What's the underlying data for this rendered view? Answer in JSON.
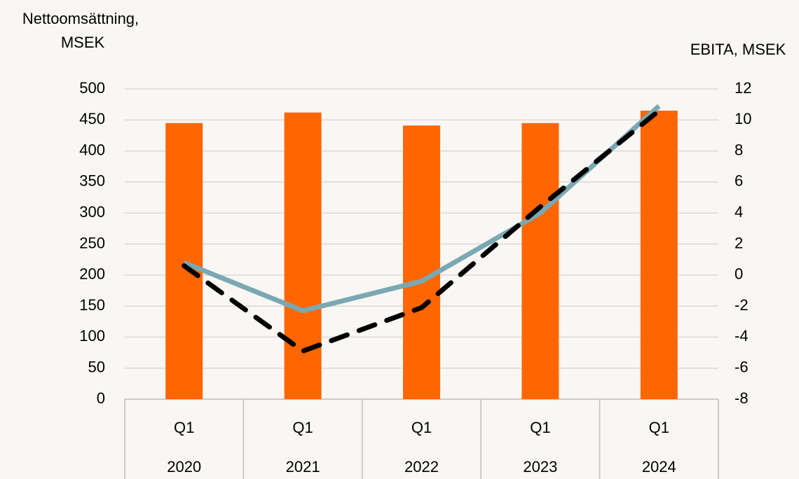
{
  "chart_data": {
    "type": "combo",
    "y_label": [
      "Nettoomsättning,",
      "MSEK"
    ],
    "y2_label": "EBITA, MSEK",
    "categories": [
      "Q1",
      "Q1",
      "Q1",
      "Q1",
      "Q1"
    ],
    "years": [
      "2020",
      "2021",
      "2022",
      "2023",
      "2024"
    ],
    "ylim": [
      0,
      500
    ],
    "yticks": [
      0,
      50,
      100,
      150,
      200,
      250,
      300,
      350,
      400,
      450,
      500
    ],
    "y2lim": [
      -8,
      12
    ],
    "y2ticks": [
      -8,
      -6,
      -4,
      -2,
      0,
      2,
      4,
      6,
      8,
      10,
      12
    ],
    "grid": true,
    "series": [
      {
        "type": "bar",
        "color": "#ff6600",
        "values": [
          445,
          462,
          441,
          445,
          465
        ]
      },
      {
        "type": "line",
        "axis": "y2",
        "color": "#7aa8b3",
        "dash": false,
        "values": [
          0.8,
          -2.3,
          -0.4,
          4.0,
          10.9
        ]
      },
      {
        "type": "line",
        "axis": "y2",
        "color": "#000000",
        "dash": true,
        "values": [
          0.6,
          -4.9,
          -2.1,
          4.4,
          10.6
        ]
      }
    ]
  }
}
